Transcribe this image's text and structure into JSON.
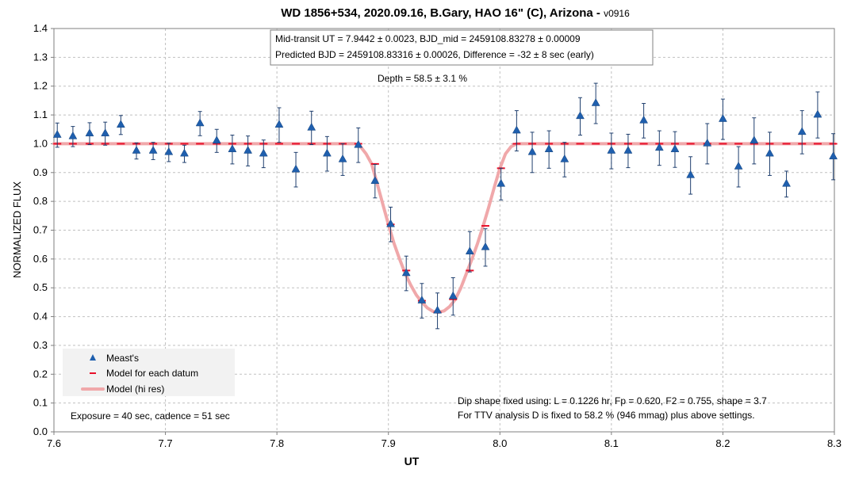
{
  "chart_data": {
    "type": "scatter",
    "title_main": "WD 1856+534, 2020.09.16, B.Gary, HAO 16\" (C), Arizona - ",
    "title_version": "v0916",
    "xlabel": "UT",
    "ylabel": "NORMALIZED FLUX",
    "xlim": [
      7.6,
      8.3
    ],
    "ylim": [
      0.0,
      1.4
    ],
    "x_ticks": [
      "7.6",
      "7.7",
      "7.8",
      "7.9",
      "8.0",
      "8.1",
      "8.2",
      "8.3"
    ],
    "y_ticks": [
      "0.0",
      "0.1",
      "0.2",
      "0.3",
      "0.4",
      "0.5",
      "0.6",
      "0.7",
      "0.8",
      "0.9",
      "1.0",
      "1.1",
      "1.2",
      "1.3",
      "1.4"
    ],
    "grid": true,
    "legend": {
      "position": "bottom-left",
      "entries": [
        "Meast's",
        "Model for each datum",
        "Model (hi res)"
      ]
    },
    "annotations": {
      "box_line1": "Mid-transit UT = 7.9442 ± 0.0023, BJD_mid = 2459108.83278 ± 0.00009",
      "box_line2": "Predicted BJD = 2459108.83316 ± 0.00026, Difference = -32 ± 8 sec (early)",
      "depth": "Depth = 58.5 ± 3.1 %",
      "dip_line1": "Dip shape fixed using:  L = 0.1226 hr, Fp = 0.620, F2 = 0.755, shape = 3.7",
      "dip_line2": "For TTV analysis D is fixed  to 58.2 % (946 mmag) plus above settings.",
      "exposure": "Exposure = 40 sec, cadence = 51 sec"
    },
    "measurements": {
      "name": "Meast's",
      "color": "#1f5fae",
      "x": [
        7.603,
        7.617,
        7.632,
        7.646,
        7.66,
        7.674,
        7.689,
        7.703,
        7.717,
        7.731,
        7.746,
        7.76,
        7.774,
        7.788,
        7.802,
        7.817,
        7.831,
        7.845,
        7.859,
        7.873,
        7.888,
        7.902,
        7.916,
        7.93,
        7.944,
        7.958,
        7.973,
        7.987,
        8.001,
        8.015,
        8.029,
        8.044,
        8.058,
        8.072,
        8.086,
        8.1,
        8.115,
        8.129,
        8.143,
        8.157,
        8.171,
        8.186,
        8.2,
        8.214,
        8.228,
        8.242,
        8.257,
        8.271,
        8.285,
        8.299
      ],
      "y": [
        1.03,
        1.025,
        1.035,
        1.035,
        1.065,
        0.975,
        0.975,
        0.97,
        0.965,
        1.07,
        1.01,
        0.98,
        0.975,
        0.965,
        1.065,
        0.91,
        1.055,
        0.965,
        0.945,
        0.995,
        0.87,
        0.72,
        0.55,
        0.455,
        0.42,
        0.47,
        0.625,
        0.64,
        0.86,
        1.045,
        0.97,
        0.98,
        0.945,
        1.095,
        1.14,
        0.975,
        0.975,
        1.08,
        0.985,
        0.98,
        0.89,
        1.0,
        1.085,
        0.92,
        1.01,
        0.965,
        0.86,
        1.04,
        1.1,
        0.955
      ],
      "err": [
        0.042,
        0.035,
        0.038,
        0.04,
        0.033,
        0.028,
        0.03,
        0.032,
        0.03,
        0.042,
        0.04,
        0.05,
        0.052,
        0.048,
        0.06,
        0.06,
        0.058,
        0.06,
        0.055,
        0.06,
        0.058,
        0.06,
        0.06,
        0.06,
        0.062,
        0.065,
        0.07,
        0.065,
        0.055,
        0.07,
        0.07,
        0.065,
        0.06,
        0.065,
        0.07,
        0.062,
        0.058,
        0.06,
        0.06,
        0.062,
        0.065,
        0.07,
        0.07,
        0.07,
        0.08,
        0.075,
        0.045,
        0.075,
        0.08,
        0.08
      ]
    },
    "model_each_datum": {
      "name": "Model for each datum",
      "color": "#e8102a",
      "x": [
        7.603,
        7.617,
        7.632,
        7.646,
        7.66,
        7.674,
        7.689,
        7.703,
        7.717,
        7.731,
        7.746,
        7.76,
        7.774,
        7.788,
        7.802,
        7.817,
        7.831,
        7.845,
        7.859,
        7.873,
        7.888,
        7.902,
        7.916,
        7.93,
        7.944,
        7.958,
        7.973,
        7.987,
        8.001,
        8.015,
        8.029,
        8.044,
        8.058,
        8.072,
        8.086,
        8.1,
        8.115,
        8.129,
        8.143,
        8.157,
        8.171,
        8.186,
        8.2,
        8.214,
        8.228,
        8.242,
        8.257,
        8.271,
        8.285,
        8.299
      ],
      "y": [
        1.0,
        1.0,
        1.0,
        1.0,
        1.0,
        1.0,
        1.0,
        1.0,
        1.0,
        1.0,
        1.0,
        1.0,
        1.0,
        1.0,
        1.0,
        1.0,
        1.0,
        1.0,
        1.0,
        1.0,
        0.93,
        0.72,
        0.56,
        0.455,
        0.415,
        0.46,
        0.56,
        0.715,
        0.915,
        1.0,
        1.0,
        1.0,
        1.0,
        1.0,
        1.0,
        1.0,
        1.0,
        1.0,
        1.0,
        1.0,
        1.0,
        1.0,
        1.0,
        1.0,
        1.0,
        1.0,
        1.0,
        1.0,
        1.0,
        1.0
      ]
    },
    "model_hi_res": {
      "name": "Model (hi res)",
      "color": "#f0a8aa",
      "x": [
        7.6,
        7.87,
        7.875,
        7.88,
        7.885,
        7.89,
        7.895,
        7.9,
        7.905,
        7.91,
        7.915,
        7.92,
        7.925,
        7.93,
        7.935,
        7.94,
        7.945,
        7.95,
        7.955,
        7.96,
        7.965,
        7.97,
        7.975,
        7.98,
        7.985,
        7.99,
        7.995,
        8.0,
        8.005,
        8.01,
        8.015,
        8.3
      ],
      "y": [
        1.0,
        1.0,
        0.99,
        0.965,
        0.93,
        0.86,
        0.79,
        0.72,
        0.655,
        0.6,
        0.55,
        0.51,
        0.475,
        0.45,
        0.43,
        0.418,
        0.415,
        0.42,
        0.435,
        0.46,
        0.5,
        0.55,
        0.6,
        0.655,
        0.715,
        0.78,
        0.85,
        0.915,
        0.965,
        0.99,
        1.0,
        1.0
      ]
    }
  }
}
